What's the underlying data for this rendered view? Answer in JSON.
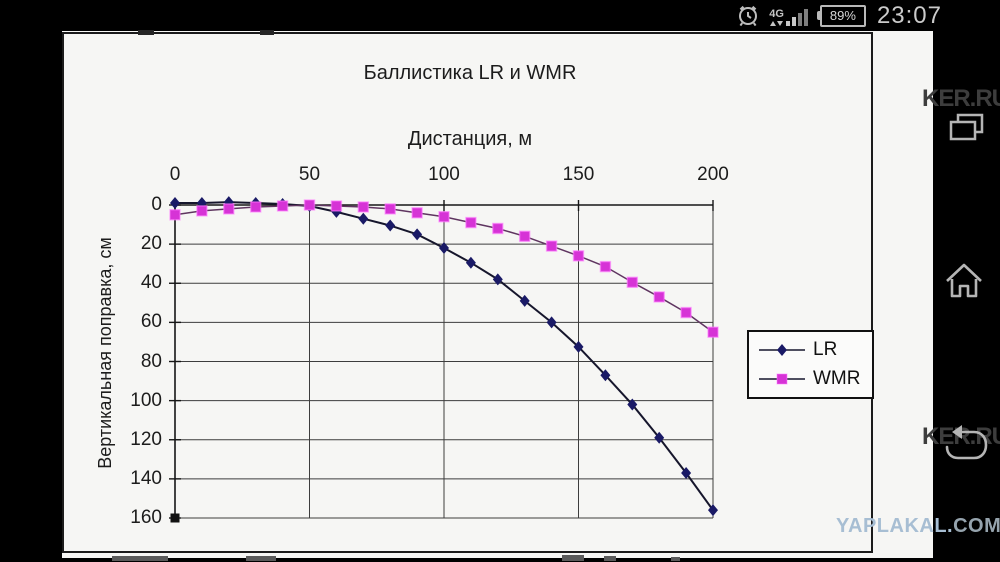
{
  "status_bar": {
    "time": "23:07",
    "battery": "89%",
    "network": "4G"
  },
  "nav": {
    "recents_icon": "recent-apps",
    "home_icon": "home",
    "back_icon": "back"
  },
  "watermarks": {
    "top_right": "KER.RU",
    "bottom_right": "KER.RU",
    "site_name": "YAPLAKAL.",
    "site_tld": "COM"
  },
  "chart_data": {
    "type": "line",
    "title": "Баллистика LR и WMR",
    "xlabel": "Дистанция, м",
    "ylabel": "Вертикальная поправка, см",
    "x": [
      0,
      10,
      20,
      30,
      40,
      50,
      60,
      70,
      80,
      90,
      100,
      110,
      120,
      130,
      140,
      150,
      160,
      170,
      180,
      190,
      200
    ],
    "series": [
      {
        "name": "LR",
        "color": "#1a1a66",
        "line_color": "#16162c",
        "marker": "diamond",
        "values": [
          -1,
          -1,
          -1.5,
          -1,
          -0.5,
          0.5,
          3.5,
          7,
          10.5,
          15,
          22,
          29.5,
          38,
          49,
          60,
          72.5,
          87,
          102,
          119,
          137,
          156
        ]
      },
      {
        "name": "WMR",
        "color": "#d633d6",
        "line_color": "#5f3560",
        "marker": "square",
        "values": [
          5,
          3,
          2,
          1,
          0.5,
          0,
          0.5,
          1,
          2,
          4,
          6,
          9,
          12,
          16,
          21,
          26,
          31.5,
          39.5,
          47,
          55,
          65
        ]
      }
    ],
    "xticks": [
      0,
      50,
      100,
      150,
      200
    ],
    "yticks": [
      0,
      20,
      40,
      60,
      80,
      100,
      120,
      140,
      160
    ],
    "xlim": [
      0,
      200
    ],
    "ylim": [
      0,
      160
    ],
    "y_inverted": true,
    "grid": true,
    "legend_position": "inside-right",
    "extra_marker": {
      "x": 0,
      "y": 160,
      "color": "#111111"
    }
  }
}
